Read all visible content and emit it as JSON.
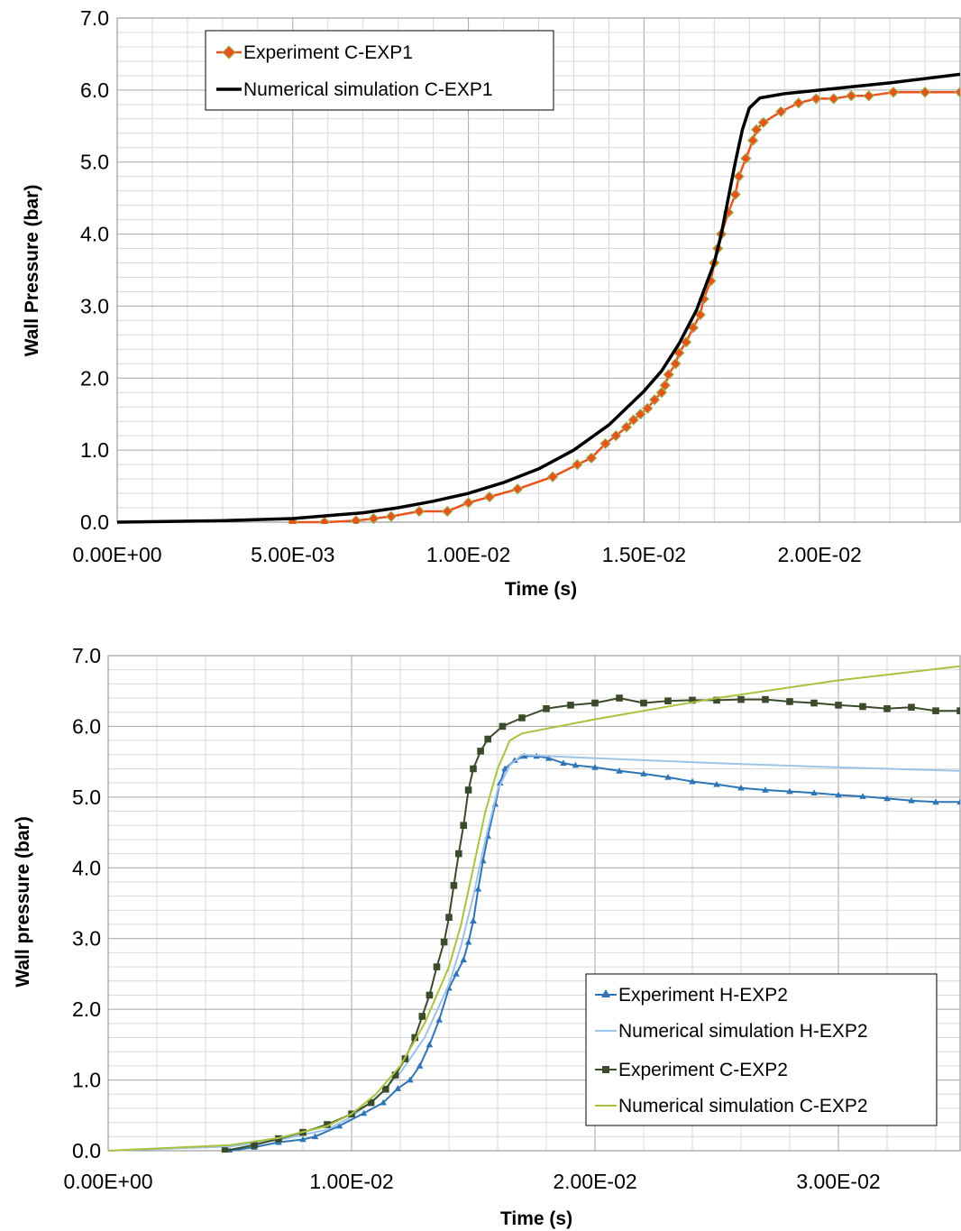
{
  "chart_data": [
    {
      "type": "line",
      "xlabel": "Time (s)",
      "ylabel": "Wall  Pressure (bar)",
      "xlim": [
        0,
        0.024
      ],
      "ylim": [
        0,
        7
      ],
      "x_ticks": [
        "0.00E+00",
        "5.00E-03",
        "1.00E-02",
        "1.50E-02",
        "2.00E-02"
      ],
      "y_ticks": [
        "0.0",
        "1.0",
        "2.0",
        "3.0",
        "4.0",
        "5.0",
        "6.0",
        "7.0"
      ],
      "grid": true,
      "legend_position": "top-left",
      "series": [
        {
          "name": "Experiment C-EXP1",
          "color": "#e8541b",
          "marker": "diamond",
          "marker_fill": "#e8541b",
          "marker_stroke": "#9bbb59",
          "points": [
            [
              0.005,
              0.0
            ],
            [
              0.0059,
              0.0
            ],
            [
              0.0068,
              0.02
            ],
            [
              0.0073,
              0.05
            ],
            [
              0.0078,
              0.08
            ],
            [
              0.0086,
              0.15
            ],
            [
              0.0094,
              0.15
            ],
            [
              0.01,
              0.27
            ],
            [
              0.0106,
              0.35
            ],
            [
              0.0114,
              0.46
            ],
            [
              0.0124,
              0.63
            ],
            [
              0.0131,
              0.8
            ],
            [
              0.0135,
              0.89
            ],
            [
              0.0139,
              1.09
            ],
            [
              0.0142,
              1.2
            ],
            [
              0.0145,
              1.32
            ],
            [
              0.0147,
              1.42
            ],
            [
              0.0149,
              1.5
            ],
            [
              0.0151,
              1.58
            ],
            [
              0.0153,
              1.7
            ],
            [
              0.0155,
              1.8
            ],
            [
              0.0156,
              1.9
            ],
            [
              0.0157,
              2.05
            ],
            [
              0.0159,
              2.2
            ],
            [
              0.016,
              2.35
            ],
            [
              0.0162,
              2.5
            ],
            [
              0.0164,
              2.7
            ],
            [
              0.0166,
              2.88
            ],
            [
              0.0167,
              3.1
            ],
            [
              0.0169,
              3.35
            ],
            [
              0.017,
              3.6
            ],
            [
              0.0171,
              3.8
            ],
            [
              0.0172,
              4.0
            ],
            [
              0.0174,
              4.3
            ],
            [
              0.0176,
              4.55
            ],
            [
              0.0177,
              4.8
            ],
            [
              0.0179,
              5.05
            ],
            [
              0.0181,
              5.3
            ],
            [
              0.0182,
              5.45
            ],
            [
              0.0184,
              5.55
            ],
            [
              0.0189,
              5.7
            ],
            [
              0.0194,
              5.82
            ],
            [
              0.0199,
              5.88
            ],
            [
              0.0204,
              5.88
            ],
            [
              0.0209,
              5.92
            ],
            [
              0.0214,
              5.92
            ],
            [
              0.0221,
              5.97
            ],
            [
              0.023,
              5.97
            ],
            [
              0.024,
              5.97
            ]
          ]
        },
        {
          "name": "Numerical simulation C-EXP1",
          "color": "#000000",
          "marker": "none",
          "points": [
            [
              0.0,
              0.0
            ],
            [
              0.003,
              0.02
            ],
            [
              0.005,
              0.05
            ],
            [
              0.006,
              0.09
            ],
            [
              0.007,
              0.13
            ],
            [
              0.008,
              0.2
            ],
            [
              0.009,
              0.29
            ],
            [
              0.01,
              0.4
            ],
            [
              0.011,
              0.55
            ],
            [
              0.012,
              0.74
            ],
            [
              0.013,
              1.0
            ],
            [
              0.014,
              1.35
            ],
            [
              0.015,
              1.82
            ],
            [
              0.0155,
              2.1
            ],
            [
              0.016,
              2.48
            ],
            [
              0.0165,
              2.95
            ],
            [
              0.017,
              3.6
            ],
            [
              0.0172,
              4.0
            ],
            [
              0.0174,
              4.5
            ],
            [
              0.0176,
              5.0
            ],
            [
              0.0178,
              5.45
            ],
            [
              0.018,
              5.75
            ],
            [
              0.0183,
              5.89
            ],
            [
              0.019,
              5.95
            ],
            [
              0.02,
              6.0
            ],
            [
              0.022,
              6.1
            ],
            [
              0.024,
              6.22
            ]
          ]
        }
      ]
    },
    {
      "type": "line",
      "xlabel": "Time (s)",
      "ylabel": "Wall pressure (bar)",
      "xlim": [
        0,
        0.035
      ],
      "ylim": [
        0,
        7
      ],
      "x_ticks": [
        "0.00E+00",
        "1.00E-02",
        "2.00E-02",
        "3.00E-02"
      ],
      "y_ticks": [
        "0.0",
        "1.0",
        "2.0",
        "3.0",
        "4.0",
        "5.0",
        "6.0",
        "7.0"
      ],
      "grid": true,
      "legend_position": "bottom-right",
      "series": [
        {
          "name": "Experiment H-EXP2",
          "color": "#2e75b6",
          "marker": "triangle",
          "marker_fill": "#2e75b6",
          "points": [
            [
              0.005,
              0.0
            ],
            [
              0.006,
              0.05
            ],
            [
              0.007,
              0.12
            ],
            [
              0.008,
              0.16
            ],
            [
              0.0085,
              0.2
            ],
            [
              0.0095,
              0.35
            ],
            [
              0.0105,
              0.53
            ],
            [
              0.0113,
              0.68
            ],
            [
              0.0119,
              0.88
            ],
            [
              0.0124,
              1.0
            ],
            [
              0.0128,
              1.2
            ],
            [
              0.0132,
              1.5
            ],
            [
              0.0136,
              1.85
            ],
            [
              0.014,
              2.3
            ],
            [
              0.0143,
              2.5
            ],
            [
              0.0146,
              2.7
            ],
            [
              0.0148,
              2.95
            ],
            [
              0.015,
              3.25
            ],
            [
              0.0152,
              3.7
            ],
            [
              0.0154,
              4.1
            ],
            [
              0.0156,
              4.45
            ],
            [
              0.0159,
              4.9
            ],
            [
              0.0161,
              5.2
            ],
            [
              0.0163,
              5.4
            ],
            [
              0.0167,
              5.52
            ],
            [
              0.0171,
              5.58
            ],
            [
              0.0176,
              5.58
            ],
            [
              0.0181,
              5.55
            ],
            [
              0.0187,
              5.48
            ],
            [
              0.0192,
              5.45
            ],
            [
              0.02,
              5.42
            ],
            [
              0.021,
              5.37
            ],
            [
              0.022,
              5.33
            ],
            [
              0.023,
              5.28
            ],
            [
              0.024,
              5.22
            ],
            [
              0.025,
              5.18
            ],
            [
              0.026,
              5.13
            ],
            [
              0.027,
              5.1
            ],
            [
              0.028,
              5.08
            ],
            [
              0.029,
              5.06
            ],
            [
              0.03,
              5.03
            ],
            [
              0.031,
              5.01
            ],
            [
              0.032,
              4.98
            ],
            [
              0.033,
              4.95
            ],
            [
              0.034,
              4.93
            ],
            [
              0.035,
              4.93
            ]
          ]
        },
        {
          "name": "Numerical simulation H-EXP2",
          "color": "#9dc3e6",
          "marker": "none",
          "points": [
            [
              0.0,
              0.0
            ],
            [
              0.005,
              0.06
            ],
            [
              0.007,
              0.15
            ],
            [
              0.009,
              0.3
            ],
            [
              0.01,
              0.48
            ],
            [
              0.011,
              0.75
            ],
            [
              0.012,
              1.1
            ],
            [
              0.013,
              1.6
            ],
            [
              0.014,
              2.35
            ],
            [
              0.0145,
              2.9
            ],
            [
              0.015,
              3.6
            ],
            [
              0.0155,
              4.4
            ],
            [
              0.016,
              5.1
            ],
            [
              0.0165,
              5.45
            ],
            [
              0.017,
              5.6
            ],
            [
              0.018,
              5.58
            ],
            [
              0.02,
              5.55
            ],
            [
              0.025,
              5.48
            ],
            [
              0.03,
              5.42
            ],
            [
              0.035,
              5.37
            ]
          ]
        },
        {
          "name": "Experiment C-EXP2",
          "color": "#3a4a2a",
          "marker": "square",
          "marker_fill": "#3a4a2a",
          "points": [
            [
              0.0048,
              0.0
            ],
            [
              0.006,
              0.08
            ],
            [
              0.007,
              0.17
            ],
            [
              0.008,
              0.26
            ],
            [
              0.009,
              0.37
            ],
            [
              0.01,
              0.52
            ],
            [
              0.0108,
              0.68
            ],
            [
              0.0114,
              0.87
            ],
            [
              0.0118,
              1.07
            ],
            [
              0.0122,
              1.3
            ],
            [
              0.0126,
              1.6
            ],
            [
              0.0129,
              1.9
            ],
            [
              0.0132,
              2.2
            ],
            [
              0.0135,
              2.6
            ],
            [
              0.0138,
              2.95
            ],
            [
              0.014,
              3.3
            ],
            [
              0.0142,
              3.75
            ],
            [
              0.0144,
              4.2
            ],
            [
              0.0146,
              4.6
            ],
            [
              0.0148,
              5.1
            ],
            [
              0.015,
              5.4
            ],
            [
              0.0153,
              5.65
            ],
            [
              0.0156,
              5.82
            ],
            [
              0.0162,
              6.0
            ],
            [
              0.017,
              6.12
            ],
            [
              0.018,
              6.25
            ],
            [
              0.019,
              6.3
            ],
            [
              0.02,
              6.33
            ],
            [
              0.021,
              6.4
            ],
            [
              0.022,
              6.33
            ],
            [
              0.023,
              6.36
            ],
            [
              0.024,
              6.37
            ],
            [
              0.025,
              6.37
            ],
            [
              0.026,
              6.38
            ],
            [
              0.027,
              6.38
            ],
            [
              0.028,
              6.35
            ],
            [
              0.029,
              6.33
            ],
            [
              0.03,
              6.3
            ],
            [
              0.031,
              6.28
            ],
            [
              0.032,
              6.25
            ],
            [
              0.033,
              6.27
            ],
            [
              0.034,
              6.22
            ],
            [
              0.035,
              6.22
            ]
          ]
        },
        {
          "name": "Numerical simulation C-EXP2",
          "color": "#a9c23f",
          "marker": "none",
          "points": [
            [
              0.0,
              0.0
            ],
            [
              0.005,
              0.08
            ],
            [
              0.007,
              0.18
            ],
            [
              0.009,
              0.35
            ],
            [
              0.01,
              0.52
            ],
            [
              0.011,
              0.8
            ],
            [
              0.012,
              1.2
            ],
            [
              0.013,
              1.8
            ],
            [
              0.014,
              2.6
            ],
            [
              0.0145,
              3.2
            ],
            [
              0.015,
              4.0
            ],
            [
              0.0155,
              4.8
            ],
            [
              0.016,
              5.4
            ],
            [
              0.0165,
              5.8
            ],
            [
              0.017,
              5.9
            ],
            [
              0.02,
              6.1
            ],
            [
              0.025,
              6.4
            ],
            [
              0.03,
              6.65
            ],
            [
              0.035,
              6.85
            ]
          ]
        }
      ]
    }
  ]
}
